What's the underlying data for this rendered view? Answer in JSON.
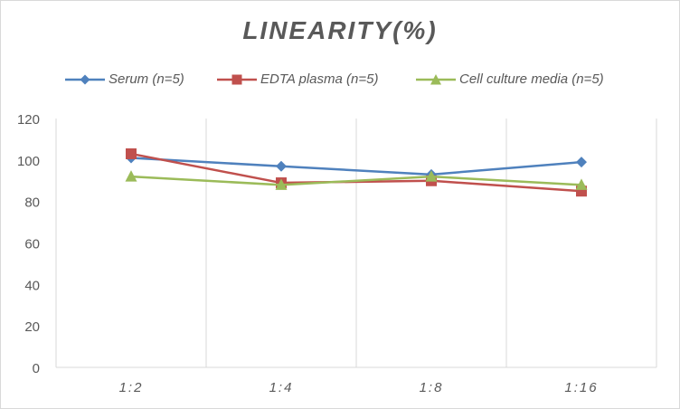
{
  "chart_data": {
    "type": "line",
    "title": "LINEARITY(%)",
    "categories": [
      "1:2",
      "1:4",
      "1:8",
      "1:16"
    ],
    "ylim": [
      0,
      120
    ],
    "yticks": [
      0,
      20,
      40,
      60,
      80,
      100,
      120
    ],
    "grid": "vertical",
    "legend_position": "top",
    "series": [
      {
        "name": "Serum (n=5)",
        "values": [
          101,
          97,
          93,
          99
        ],
        "color": "#4f81bd",
        "marker": "diamond"
      },
      {
        "name": "EDTA plasma (n=5)",
        "values": [
          103,
          89,
          90,
          85
        ],
        "color": "#c0504d",
        "marker": "square"
      },
      {
        "name": "Cell culture media (n=5)",
        "values": [
          92,
          88,
          92,
          88
        ],
        "color": "#9bbb59",
        "marker": "triangle"
      }
    ]
  }
}
